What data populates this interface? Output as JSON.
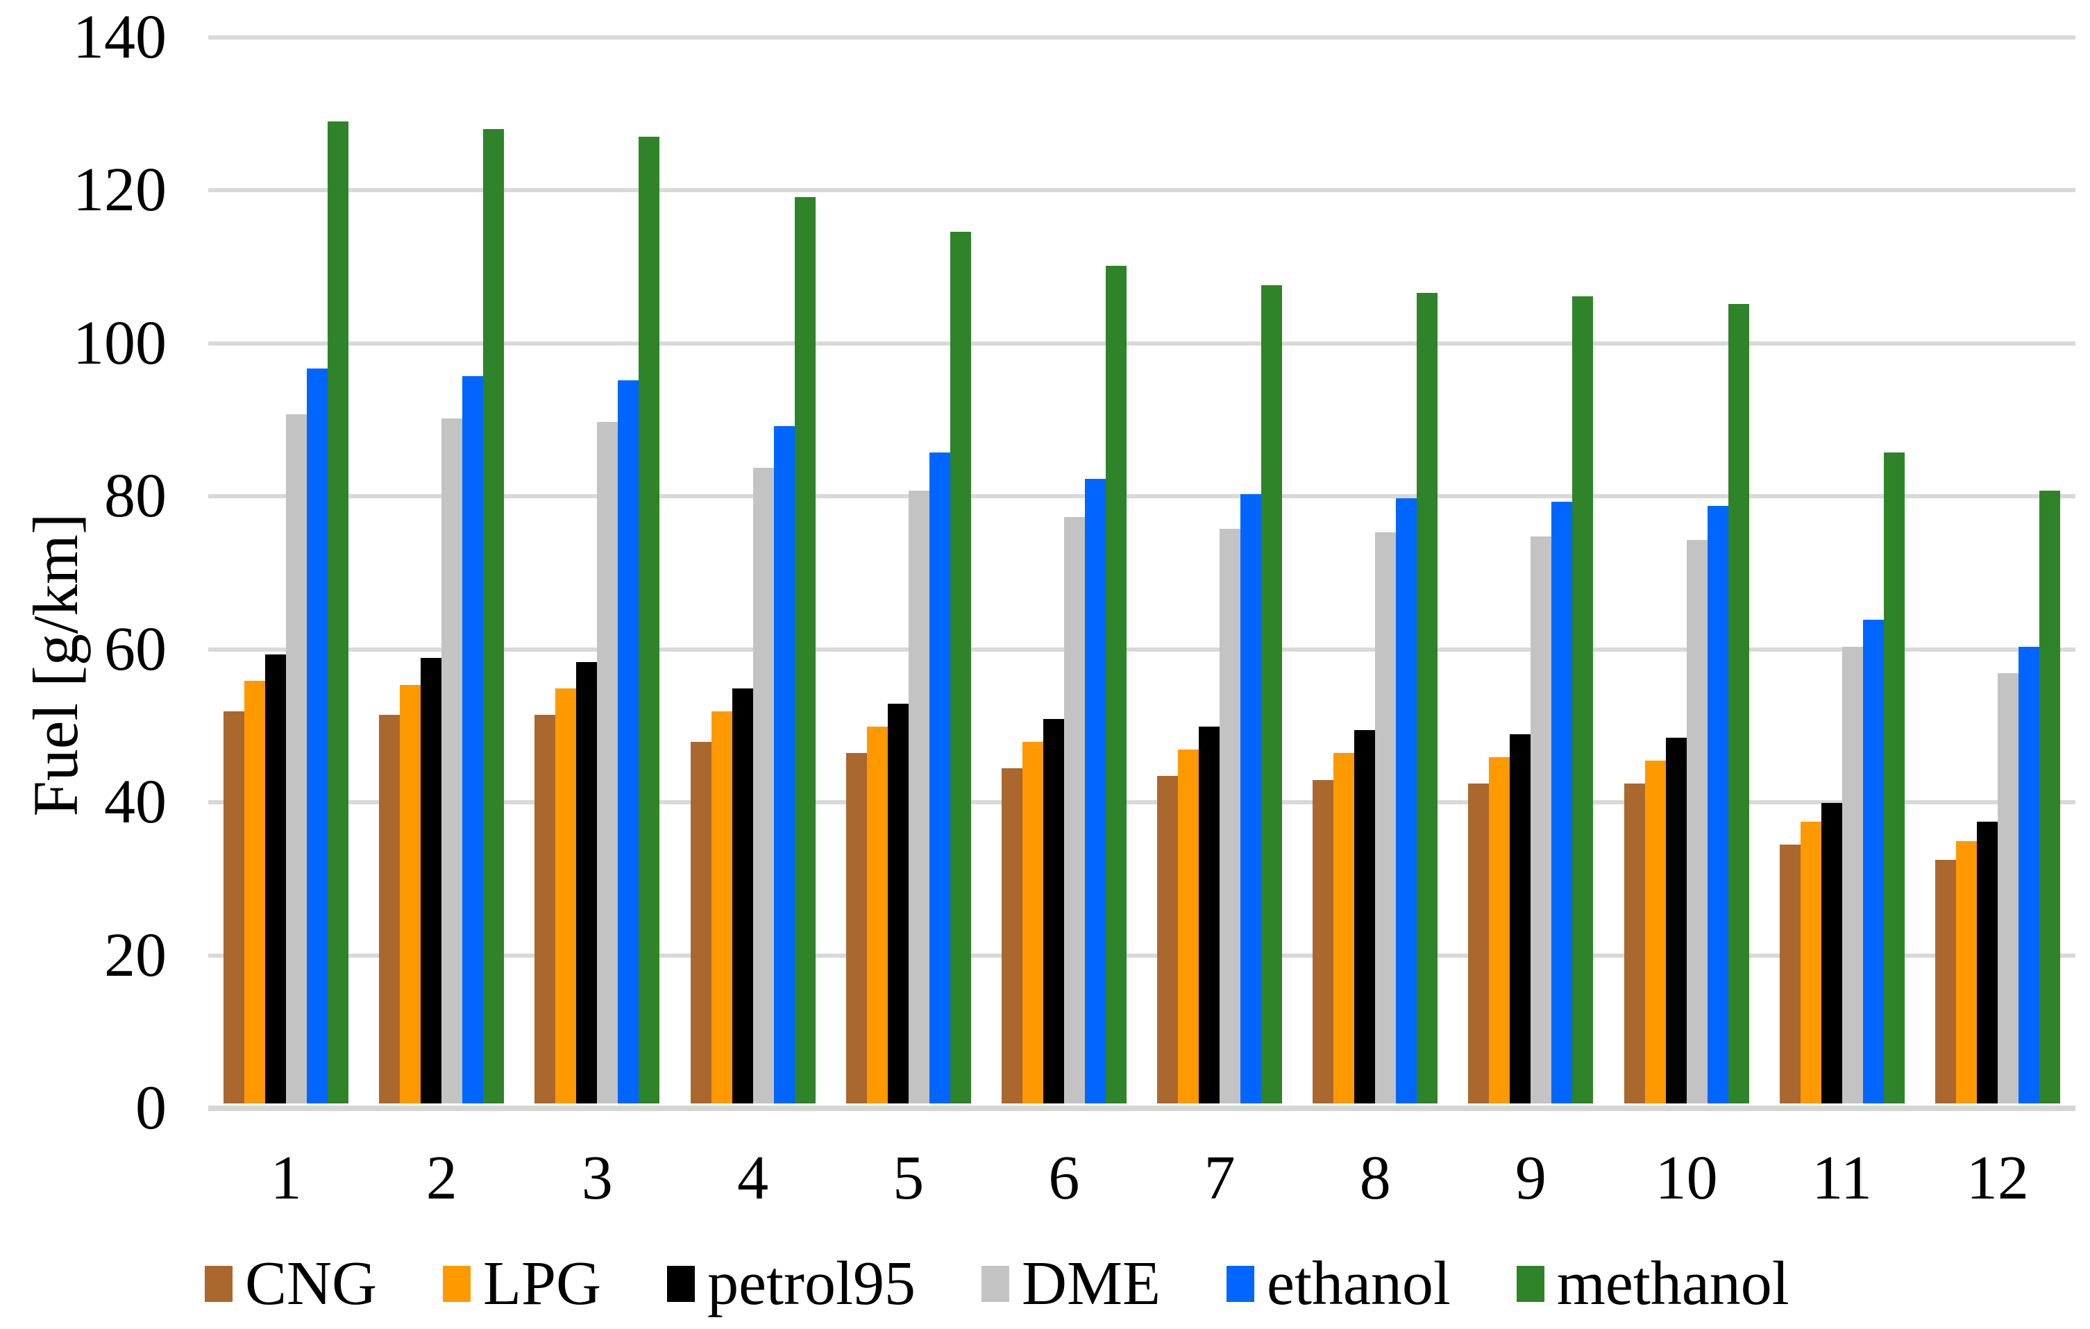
{
  "chart_data": {
    "type": "bar",
    "title": "",
    "xlabel": "",
    "ylabel": "Fuel [g/km]",
    "ylim": [
      0,
      140
    ],
    "ytick_step": 20,
    "y_ticks": [
      "0",
      "20",
      "40",
      "60",
      "80",
      "100",
      "120",
      "140"
    ],
    "grid": true,
    "legend_position": "bottom",
    "gridline_color": "#D9D9D9",
    "axis_line_color": "#D6D6D6",
    "categories": [
      "1",
      "2",
      "3",
      "4",
      "5",
      "6",
      "7",
      "8",
      "9",
      "10",
      "11",
      "12"
    ],
    "series": [
      {
        "name": "CNG",
        "color": "#AA682F",
        "values": [
          51.5,
          51,
          51,
          47.5,
          46,
          44,
          43,
          42.5,
          42,
          42,
          34,
          32
        ]
      },
      {
        "name": "LPG",
        "color": "#FF9900",
        "values": [
          55.5,
          55,
          54.5,
          51.5,
          49.5,
          47.5,
          46.5,
          46,
          45.5,
          45,
          37,
          34.5
        ]
      },
      {
        "name": "petrol95",
        "color": "#000000",
        "values": [
          59,
          58.5,
          58,
          54.5,
          52.5,
          50.5,
          49.5,
          49,
          48.5,
          48,
          39.5,
          37
        ]
      },
      {
        "name": "DME",
        "color": "#C3C3C3",
        "values": [
          90.5,
          90,
          89.5,
          83.5,
          80.5,
          77,
          75.5,
          75,
          74.5,
          74,
          60,
          56.5
        ]
      },
      {
        "name": "ethanol",
        "color": "#0066FF",
        "values": [
          96.5,
          95.5,
          95,
          89,
          85.5,
          82,
          80,
          79.5,
          79,
          78.5,
          63.5,
          60
        ]
      },
      {
        "name": "methanol",
        "color": "#2F8328",
        "values": [
          129,
          128,
          127,
          119,
          114.5,
          110,
          107.5,
          106.5,
          106,
          105,
          85.5,
          80.5
        ]
      }
    ]
  }
}
